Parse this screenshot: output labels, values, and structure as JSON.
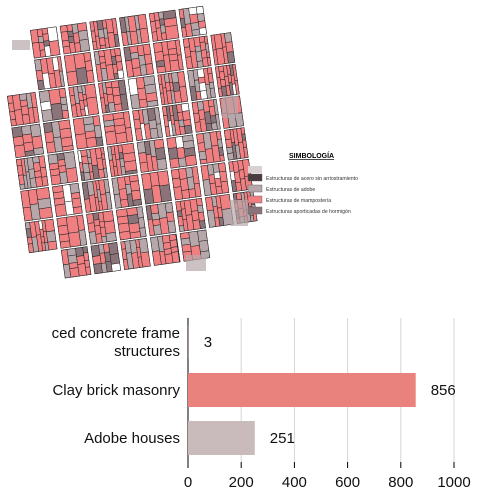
{
  "map": {
    "legend": {
      "title": "SIMBOLOGÍA",
      "items": [
        {
          "label": "Estructuras de acero sin arriostramiento",
          "color": "#4a3b3f"
        },
        {
          "label": "Estructuras de adobe",
          "color": "#b7a7aa"
        },
        {
          "label": "Estructuras de mampostería",
          "color": "#f07f82"
        },
        {
          "label": "Estructuras aporticadas de hormigón",
          "color": "#8b7479"
        }
      ]
    },
    "colors": {
      "masonry": "#f07f82",
      "adobe": "#b7a7aa",
      "concrete": "#8b7479",
      "outline": "#222222"
    }
  },
  "chart_data": {
    "type": "bar",
    "orientation": "horizontal",
    "categories": [
      "ced concrete frame\nstructures",
      "Clay brick masonry",
      "Adobe houses"
    ],
    "values": [
      3,
      856,
      251
    ],
    "colors": [
      "#8b7479",
      "#e9817c",
      "#c9bbbb"
    ],
    "xlim": [
      0,
      1000
    ],
    "xticks": [
      0,
      200,
      400,
      600,
      800,
      1000
    ],
    "grid": true
  }
}
